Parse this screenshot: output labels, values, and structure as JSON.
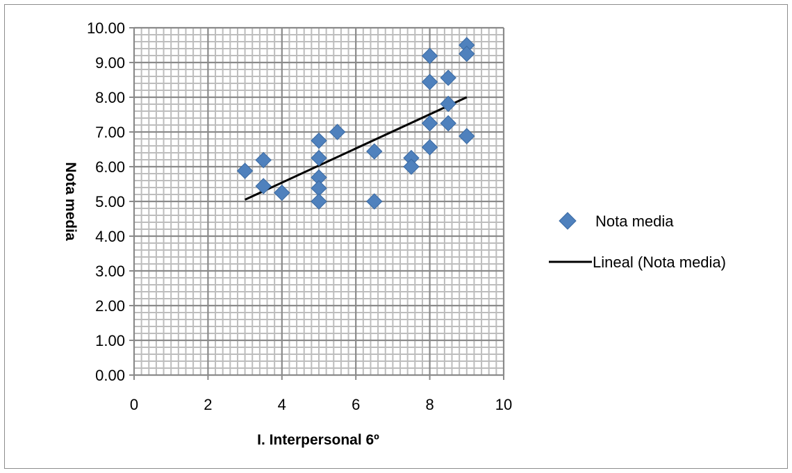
{
  "chart_data": {
    "type": "scatter",
    "xlabel": "I. Interpersonal 6º",
    "ylabel": "Nota media",
    "xlim": [
      0,
      10
    ],
    "ylim": [
      0,
      10
    ],
    "x_ticks": [
      "0",
      "2",
      "4",
      "6",
      "8",
      "10"
    ],
    "y_ticks": [
      "0.00",
      "1.00",
      "2.00",
      "3.00",
      "4.00",
      "5.00",
      "6.00",
      "7.00",
      "8.00",
      "9.00",
      "10.00"
    ],
    "grid": true,
    "legend_position": "right",
    "series": [
      {
        "name": "Nota media",
        "kind": "scatter",
        "marker": "diamond",
        "color": "#4f81bd",
        "points": [
          {
            "x": 3,
            "y": 5.88
          },
          {
            "x": 3.5,
            "y": 6.19
          },
          {
            "x": 3.5,
            "y": 5.44
          },
          {
            "x": 4,
            "y": 5.25
          },
          {
            "x": 5,
            "y": 6.75
          },
          {
            "x": 5,
            "y": 6.25
          },
          {
            "x": 5,
            "y": 5.69
          },
          {
            "x": 5,
            "y": 5.38
          },
          {
            "x": 5,
            "y": 5.0
          },
          {
            "x": 5.5,
            "y": 7.0
          },
          {
            "x": 6.5,
            "y": 6.44
          },
          {
            "x": 6.5,
            "y": 5.0
          },
          {
            "x": 7.5,
            "y": 6.25
          },
          {
            "x": 7.5,
            "y": 6.0
          },
          {
            "x": 8,
            "y": 9.19
          },
          {
            "x": 8,
            "y": 8.44
          },
          {
            "x": 8,
            "y": 7.25
          },
          {
            "x": 8,
            "y": 6.56
          },
          {
            "x": 8.5,
            "y": 8.56
          },
          {
            "x": 8.5,
            "y": 7.81
          },
          {
            "x": 8.5,
            "y": 7.25
          },
          {
            "x": 9,
            "y": 9.5
          },
          {
            "x": 9,
            "y": 9.25
          },
          {
            "x": 9,
            "y": 6.88
          }
        ]
      },
      {
        "name": "Lineal (Nota media)",
        "kind": "trendline",
        "color": "#000000",
        "points": [
          {
            "x": 3,
            "y": 5.05
          },
          {
            "x": 9,
            "y": 8.0
          }
        ]
      }
    ]
  }
}
